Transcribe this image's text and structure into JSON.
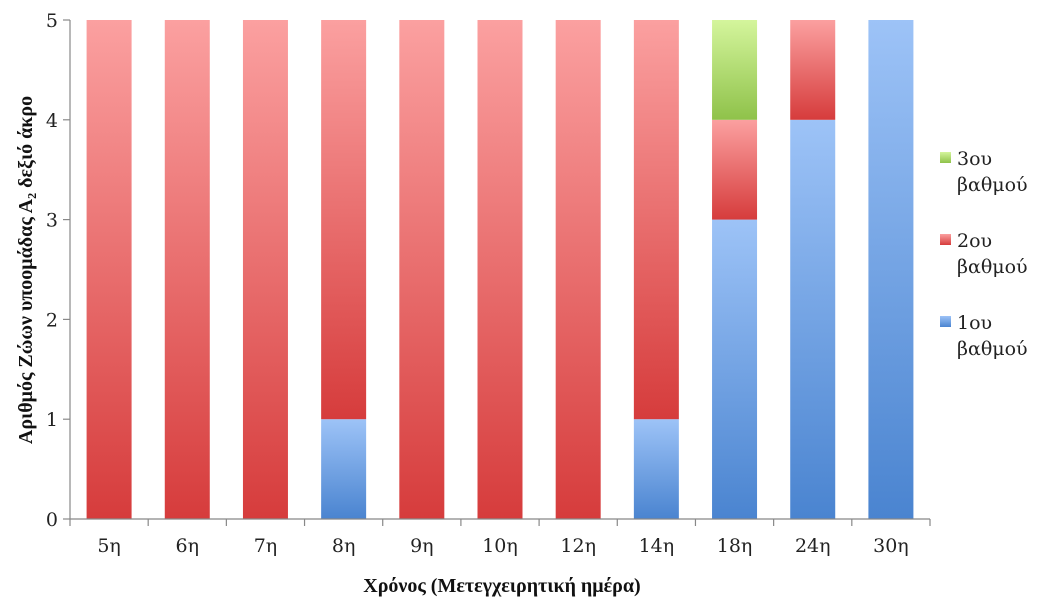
{
  "chart_data": {
    "type": "bar",
    "stacked": true,
    "categories": [
      "5η",
      "6η",
      "7η",
      "8η",
      "9η",
      "10η",
      "12η",
      "14η",
      "18η",
      "24η",
      "30η"
    ],
    "series": [
      {
        "name": "1ου βαθμού",
        "values": [
          0,
          0,
          0,
          1,
          0,
          0,
          0,
          1,
          3,
          4,
          5
        ],
        "color": "#4a84d0",
        "color_light": "#9dc3f7"
      },
      {
        "name": "2ου βαθμού",
        "values": [
          5,
          5,
          5,
          4,
          5,
          5,
          5,
          4,
          1,
          1,
          0
        ],
        "color": "#d63c3c",
        "color_light": "#fba0a0"
      },
      {
        "name": "3ου βαθμού",
        "values": [
          0,
          0,
          0,
          0,
          0,
          0,
          0,
          0,
          1,
          0,
          0
        ],
        "color": "#8fc24a",
        "color_light": "#d4f59c"
      }
    ],
    "legend_order": [
      "3ου βαθμού",
      "2ου βαθμού",
      "1ου βαθμού"
    ],
    "xlabel": "Χρόνος (Μετεγχειρητική ημέρα)",
    "ylabel": "Αριθμός Ζώων υποομάδας Α₂ δεξιό άκρο",
    "ylim": [
      0,
      5
    ],
    "yticks": [
      0,
      1,
      2,
      3,
      4,
      5
    ],
    "grid": false,
    "legend": "right"
  }
}
